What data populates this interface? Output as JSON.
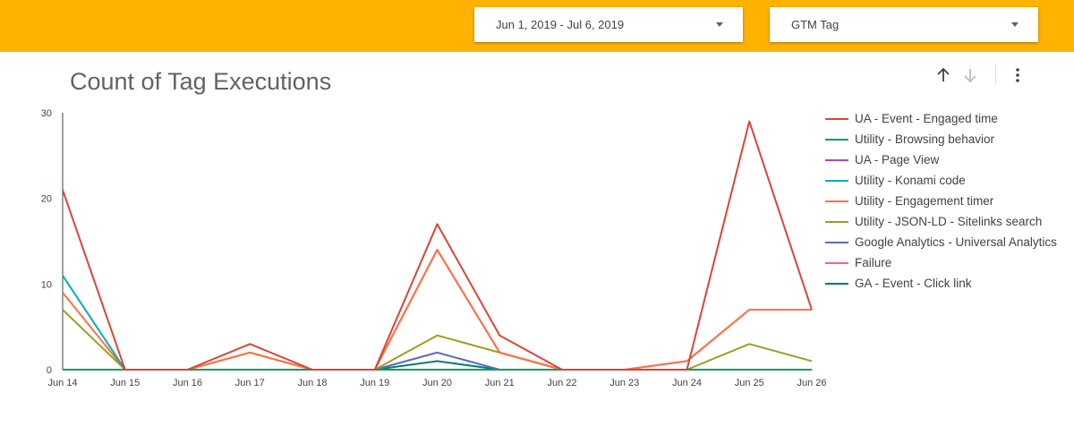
{
  "header": {
    "date_range": "Jun 1, 2019 - Jul 6, 2019",
    "tag_filter": "GTM Tag",
    "accent_color": "#ffb300"
  },
  "toolbar": {
    "sort_up_icon": "arrow-up-icon",
    "sort_down_icon": "arrow-down-icon",
    "more_icon": "more-vert-icon"
  },
  "chart_data": {
    "type": "line",
    "title": "Count of Tag Executions",
    "x": [
      "Jun 14",
      "Jun 15",
      "Jun 16",
      "Jun 17",
      "Jun 18",
      "Jun 19",
      "Jun 20",
      "Jun 21",
      "Jun 22",
      "Jun 23",
      "Jun 24",
      "Jun 25",
      "Jun 26"
    ],
    "ylim": [
      0,
      30
    ],
    "yticks": [
      0,
      10,
      20,
      30
    ],
    "grid": false,
    "legend_position": "right",
    "series": [
      {
        "name": "UA - Event - Engaged time",
        "color": "#db4437",
        "values": [
          21,
          0,
          0,
          3,
          0,
          0,
          17,
          4,
          0,
          0,
          0,
          29,
          7
        ]
      },
      {
        "name": "Utility - Browsing behavior",
        "color": "#0f9d58",
        "values": [
          0,
          0,
          0,
          0,
          0,
          0,
          0,
          0,
          0,
          0,
          0,
          0,
          0
        ]
      },
      {
        "name": "UA - Page View",
        "color": "#ab47bc",
        "values": [
          0,
          0,
          0,
          0,
          0,
          0,
          0,
          0,
          0,
          0,
          0,
          0,
          0
        ]
      },
      {
        "name": "Utility - Konami code",
        "color": "#00acc1",
        "values": [
          11,
          0,
          0,
          0,
          0,
          0,
          0,
          0,
          0,
          0,
          0,
          0,
          0
        ]
      },
      {
        "name": "Utility - Engagement timer",
        "color": "#ff7043",
        "values": [
          9,
          0,
          0,
          2,
          0,
          0,
          14,
          2,
          0,
          0,
          1,
          7,
          7
        ]
      },
      {
        "name": "Utility - JSON-LD - Sitelinks search",
        "color": "#9e9d24",
        "values": [
          7,
          0,
          0,
          2,
          0,
          0,
          4,
          2,
          0,
          0,
          0,
          3,
          1
        ]
      },
      {
        "name": "Google Analytics - Universal Analytics",
        "color": "#5c6bc0",
        "values": [
          0,
          0,
          0,
          0,
          0,
          0,
          2,
          0,
          0,
          0,
          0,
          0,
          0
        ]
      },
      {
        "name": "Failure",
        "color": "#f06292",
        "values": [
          0,
          0,
          0,
          0,
          0,
          0,
          14,
          2,
          0,
          0,
          1,
          7,
          7
        ]
      },
      {
        "name": "GA - Event - Click link",
        "color": "#00796b",
        "values": [
          0,
          0,
          0,
          0,
          0,
          0,
          1,
          0,
          0,
          0,
          0,
          0,
          0
        ]
      }
    ]
  }
}
